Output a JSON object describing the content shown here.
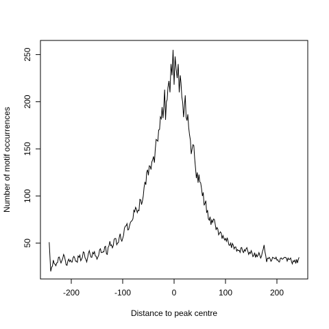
{
  "chart_data": {
    "type": "line",
    "title": "",
    "xlabel": "Distance to peak centre",
    "ylabel": "Number of motif occurrences",
    "xlim": [
      -260,
      260
    ],
    "ylim": [
      12,
      265
    ],
    "x_ticks": [
      -200,
      -100,
      0,
      100,
      200
    ],
    "y_ticks": [
      50,
      100,
      150,
      200,
      250
    ],
    "grid": false,
    "legend": "none",
    "series": [
      {
        "color": "#000000",
        "x": [
          -243,
          -240,
          -235,
          -230,
          -225,
          -220,
          -215,
          -210,
          -205,
          -200,
          -195,
          -190,
          -185,
          -180,
          -175,
          -170,
          -165,
          -160,
          -155,
          -150,
          -145,
          -140,
          -135,
          -130,
          -125,
          -120,
          -115,
          -110,
          -105,
          -100,
          -95,
          -90,
          -85,
          -80,
          -75,
          -70,
          -65,
          -60,
          -55,
          -50,
          -45,
          -40,
          -35,
          -30,
          -25,
          -20,
          -15,
          -12,
          -10,
          -8,
          -6,
          -4,
          -2,
          0,
          2,
          4,
          6,
          8,
          10,
          12,
          15,
          20,
          25,
          30,
          35,
          40,
          45,
          50,
          55,
          60,
          65,
          70,
          75,
          80,
          85,
          90,
          95,
          100,
          105,
          110,
          115,
          120,
          125,
          130,
          135,
          140,
          145,
          150,
          155,
          160,
          165,
          170,
          175,
          180,
          185,
          190,
          195,
          200,
          205,
          210,
          215,
          220,
          225,
          230,
          235,
          240,
          243
        ],
        "y": [
          51,
          20,
          32,
          26,
          35,
          29,
          38,
          27,
          33,
          30,
          36,
          31,
          35,
          33,
          40,
          30,
          42,
          35,
          41,
          33,
          43,
          40,
          46,
          38,
          52,
          45,
          55,
          50,
          60,
          55,
          68,
          64,
          72,
          76,
          88,
          85,
          96,
          100,
          112,
          122,
          128,
          142,
          160,
          170,
          182,
          195,
          200,
          215,
          222,
          210,
          240,
          228,
          255,
          218,
          248,
          235,
          225,
          240,
          210,
          228,
          205,
          195,
          180,
          165,
          150,
          140,
          125,
          115,
          100,
          92,
          85,
          78,
          72,
          70,
          65,
          62,
          58,
          55,
          52,
          50,
          48,
          46,
          42,
          45,
          40,
          44,
          38,
          42,
          37,
          38,
          40,
          36,
          48,
          30,
          35,
          32,
          34,
          32,
          30,
          33,
          35,
          31,
          33,
          28,
          32,
          29,
          35
        ]
      }
    ]
  }
}
